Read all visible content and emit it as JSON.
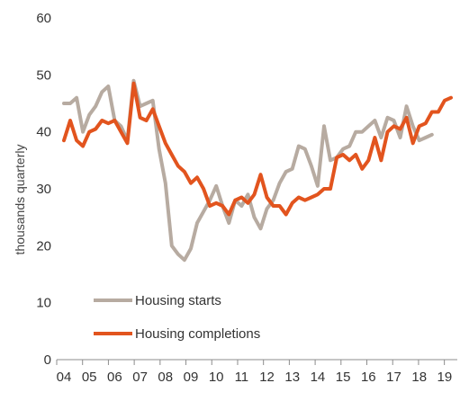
{
  "chart_data": {
    "type": "line",
    "ylabel": "thousands  quarterly",
    "ylim": [
      0,
      60
    ],
    "yticks": [
      "0",
      "10",
      "20",
      "30",
      "40",
      "50",
      "60"
    ],
    "xticks": [
      "04",
      "05",
      "06",
      "07",
      "08",
      "09",
      "10",
      "11",
      "12",
      "13",
      "14",
      "15",
      "16",
      "17",
      "18",
      "19"
    ],
    "grid": false,
    "legend_position": "bottom-left",
    "x_start": 2004,
    "x_step": 0.25,
    "series": [
      {
        "name": "Housing starts",
        "color": "#b7aba1",
        "values": [
          45,
          45,
          46,
          40,
          43,
          44.5,
          47,
          48,
          42,
          41,
          38.5,
          49,
          44.5,
          45,
          45.5,
          37,
          31,
          20,
          18.5,
          17.5,
          19.5,
          24,
          26,
          28,
          30.5,
          27,
          24,
          28,
          27,
          29,
          25,
          23,
          26.5,
          28,
          31,
          33,
          33.5,
          37.5,
          37,
          34,
          30.5,
          41,
          35,
          35.5,
          37,
          37.5,
          40,
          40,
          41,
          42,
          39,
          42.5,
          42,
          39,
          44.5,
          41,
          38.5,
          39,
          39.5
        ]
      },
      {
        "name": "Housing completions",
        "color": "#e2541e",
        "values": [
          38.5,
          42,
          38.5,
          37.5,
          40,
          40.5,
          42,
          41.5,
          42,
          40,
          38,
          48.5,
          42.5,
          42,
          44,
          41,
          38,
          36,
          34,
          33,
          31,
          32,
          30,
          27,
          27.5,
          27,
          25.5,
          28,
          28.5,
          27.5,
          29,
          32.5,
          28.5,
          27,
          27,
          25.5,
          27.5,
          28.5,
          28,
          28.5,
          29,
          30,
          30,
          35.5,
          36,
          35,
          36,
          33.5,
          35,
          39,
          35,
          40,
          41,
          40.5,
          42.5,
          38,
          41,
          41.5,
          43.5,
          43.5,
          45.5,
          46
        ]
      }
    ]
  }
}
